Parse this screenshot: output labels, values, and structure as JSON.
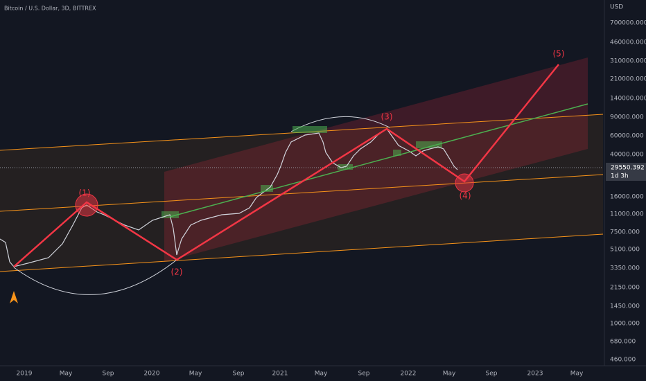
{
  "header": {
    "title": "Bitcoin / U.S. Dollar, 3D, BITTREX"
  },
  "price_axis": {
    "unit": "USD",
    "labels": [
      "700000.000",
      "460000.000",
      "310000.000",
      "210000.000",
      "140000.000",
      "90000.000",
      "60000.000",
      "40000.000",
      "16000.000",
      "11000.000",
      "7500.000",
      "5100.000",
      "3350.000",
      "2150.000",
      "1450.000",
      "1000.000",
      "680.000",
      "460.000"
    ]
  },
  "price_tag": {
    "price": "29550.392",
    "countdown": "1d 3h"
  },
  "time_axis": {
    "labels": [
      "2019",
      "May",
      "Sep",
      "2020",
      "May",
      "Sep",
      "2021",
      "May",
      "Sep",
      "2022",
      "May",
      "Sep",
      "2023",
      "May"
    ]
  },
  "annotations": [
    "(1)",
    "(2)",
    "(3)",
    "(4)",
    "(5)"
  ]
}
